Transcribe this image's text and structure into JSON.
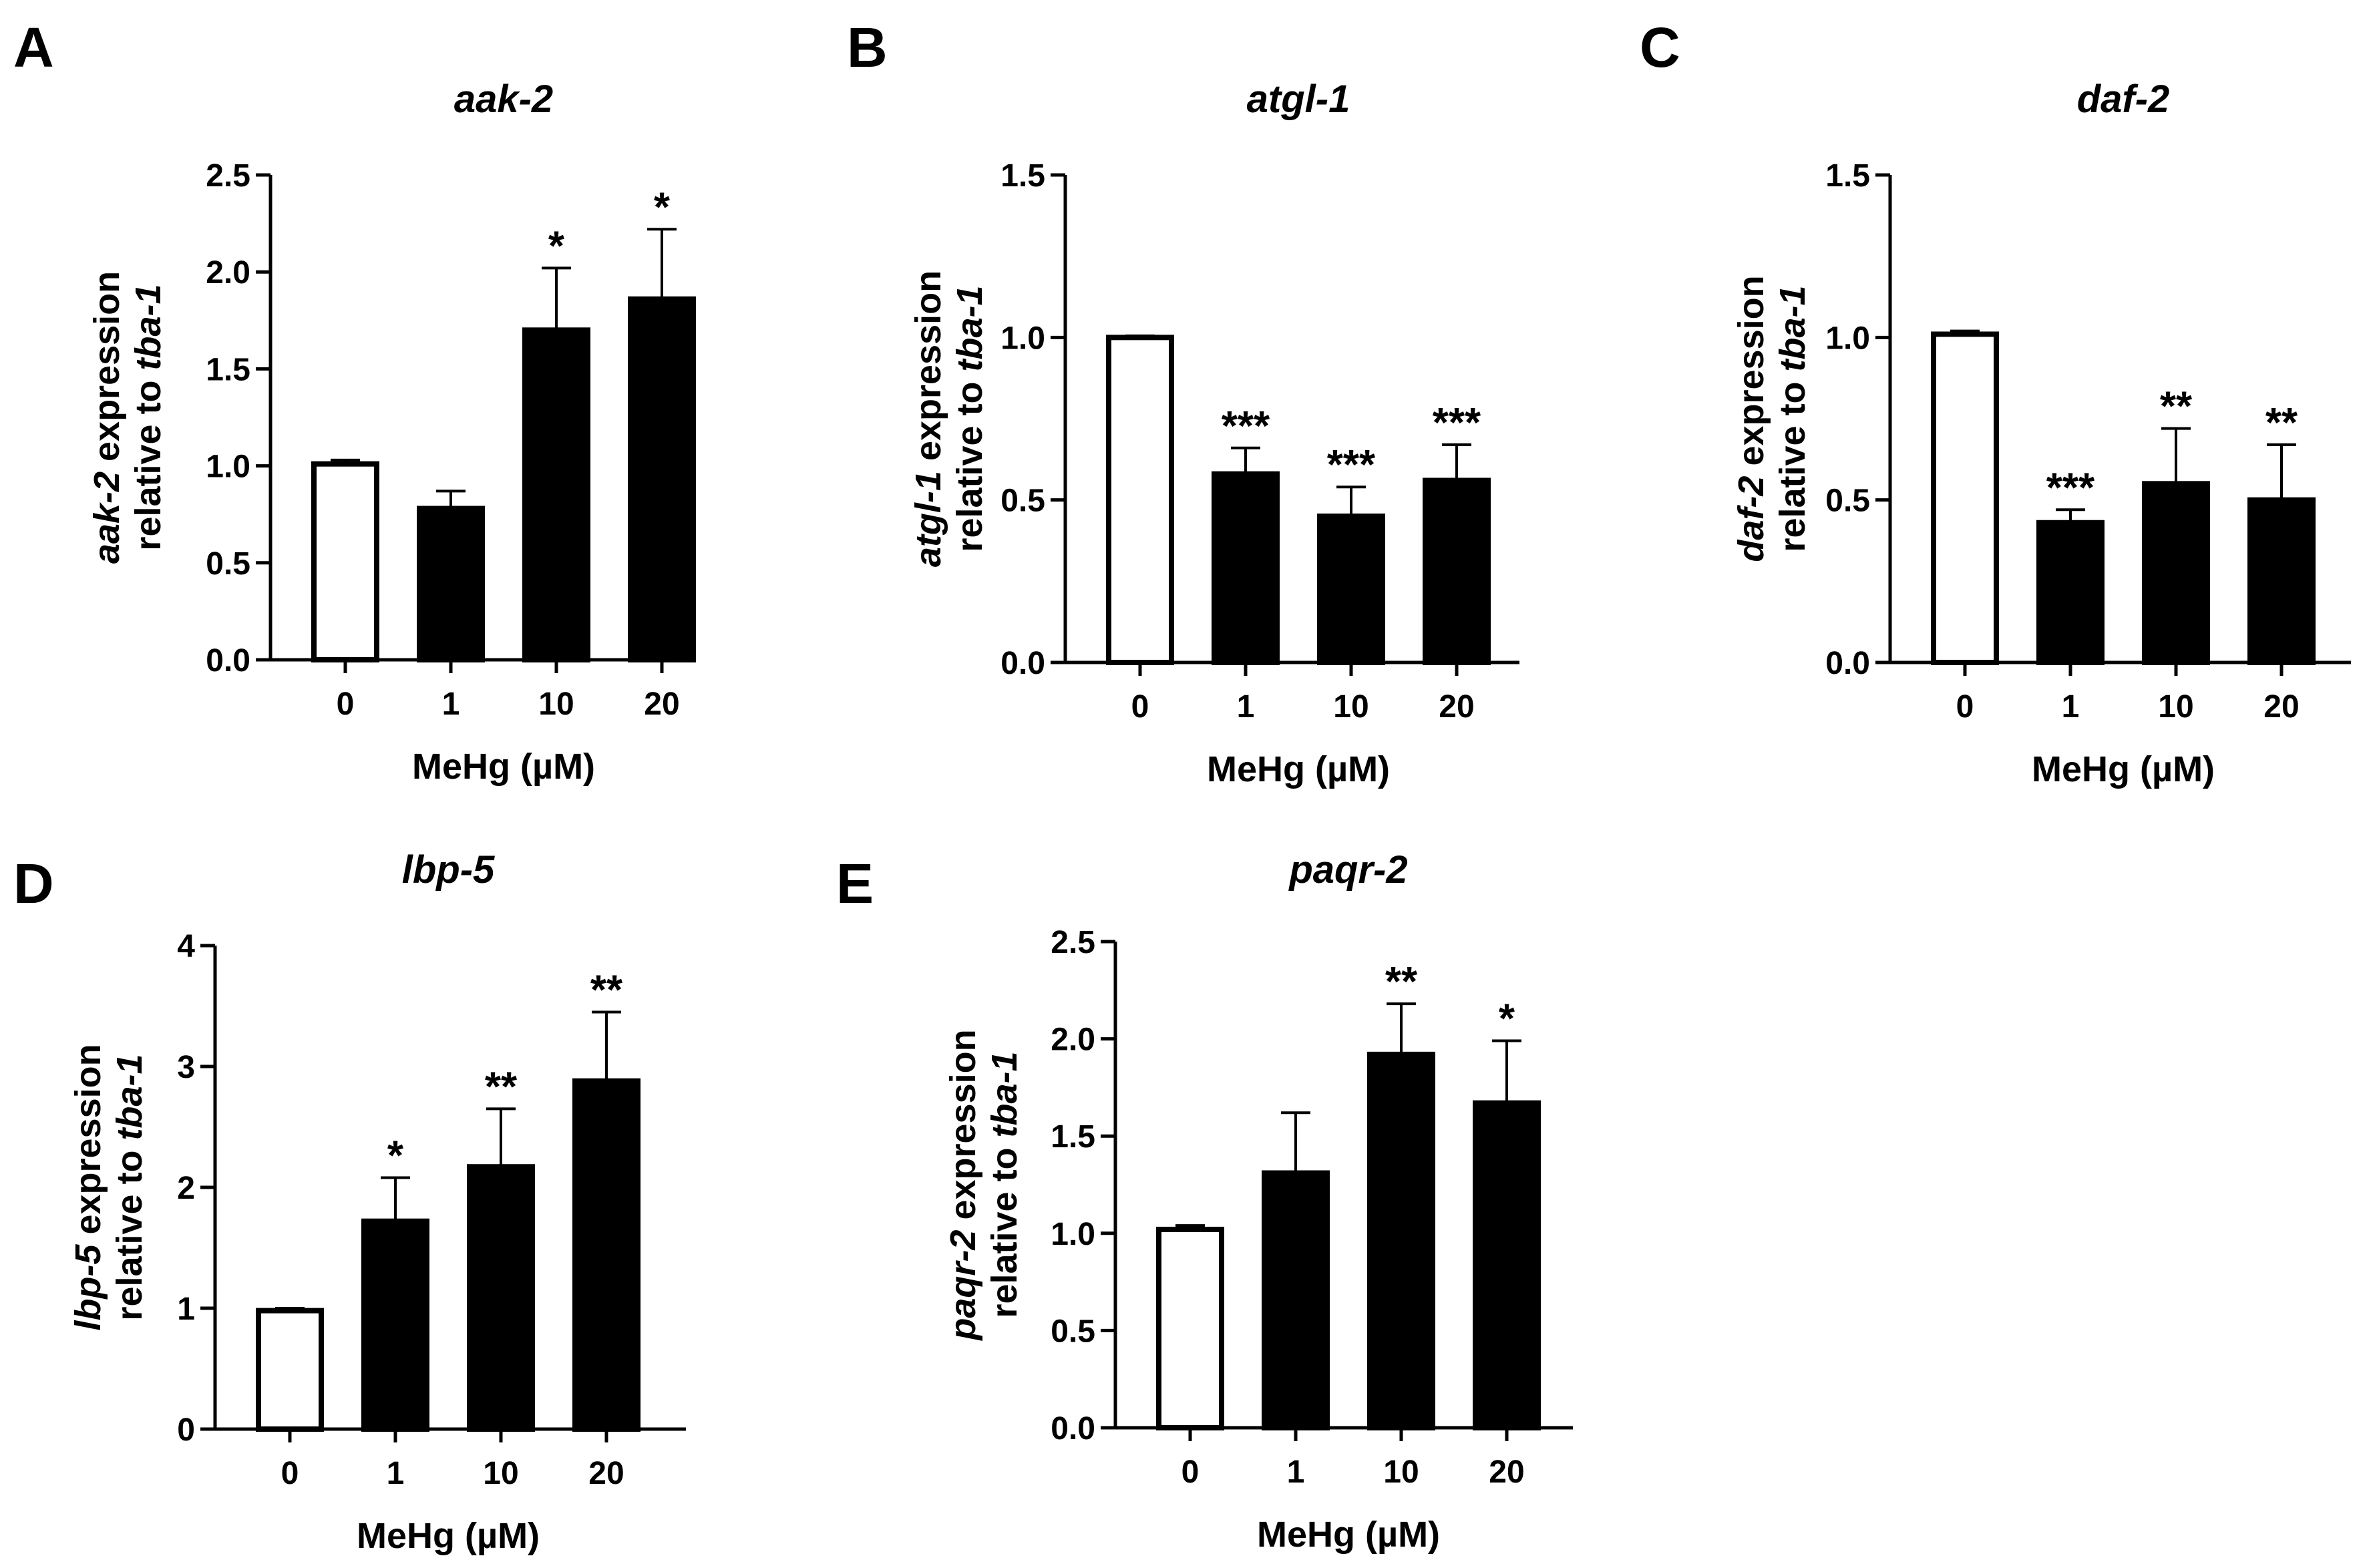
{
  "chart_data": [
    {
      "type": "bar",
      "panel": "A",
      "title": "aak-2",
      "categories": [
        "0",
        "1",
        "10",
        "20"
      ],
      "values": [
        1.01,
        0.78,
        1.7,
        1.86
      ],
      "errors": [
        0.02,
        0.09,
        0.32,
        0.36
      ],
      "significance": [
        "",
        "",
        "*",
        "*"
      ],
      "fills": [
        "#ffffff",
        "#000000",
        "#000000",
        "#000000"
      ],
      "xlabel": "MeHg (µM)",
      "ylabel_line1": {
        "italic": "aak-2",
        "text": " expression"
      },
      "ylabel_line2": {
        "text": "relative to ",
        "italic": "tba-1"
      },
      "ylim": [
        0,
        2.5
      ],
      "yticks": [
        "0.0",
        "0.5",
        "1.0",
        "1.5",
        "2.0",
        "2.5"
      ],
      "grid": false
    },
    {
      "type": "bar",
      "panel": "B",
      "title": "atgl-1",
      "categories": [
        "0",
        "1",
        "10",
        "20"
      ],
      "values": [
        1.0,
        0.58,
        0.45,
        0.56
      ],
      "errors": [
        0.005,
        0.08,
        0.09,
        0.11
      ],
      "significance": [
        "",
        "***",
        "***",
        "***"
      ],
      "fills": [
        "#ffffff",
        "#000000",
        "#000000",
        "#000000"
      ],
      "xlabel": "MeHg (µM)",
      "ylabel_line1": {
        "italic": "atgl-1",
        "text": " expression"
      },
      "ylabel_line2": {
        "text": "relative to ",
        "italic": "tba-1"
      },
      "ylim": [
        0,
        1.5
      ],
      "yticks": [
        "0.0",
        "0.5",
        "1.0",
        "1.5"
      ],
      "grid": false
    },
    {
      "type": "bar",
      "panel": "C",
      "title": "daf-2",
      "categories": [
        "0",
        "1",
        "10",
        "20"
      ],
      "values": [
        1.01,
        0.43,
        0.55,
        0.5
      ],
      "errors": [
        0.01,
        0.04,
        0.17,
        0.17
      ],
      "significance": [
        "",
        "***",
        "**",
        "**"
      ],
      "fills": [
        "#ffffff",
        "#000000",
        "#000000",
        "#000000"
      ],
      "xlabel": "MeHg (µM)",
      "ylabel_line1": {
        "italic": "daf-2",
        "text": " expression"
      },
      "ylabel_line2": {
        "text": "relative to ",
        "italic": "tba-1"
      },
      "ylim": [
        0,
        1.5
      ],
      "yticks": [
        "0.0",
        "0.5",
        "1.0",
        "1.5"
      ],
      "grid": false
    },
    {
      "type": "bar",
      "panel": "D",
      "title": "lbp-5",
      "categories": [
        "0",
        "1",
        "10",
        "20"
      ],
      "values": [
        0.98,
        1.72,
        2.17,
        2.88
      ],
      "errors": [
        0.02,
        0.36,
        0.48,
        0.57
      ],
      "significance": [
        "",
        "*",
        "**",
        "**"
      ],
      "fills": [
        "#ffffff",
        "#000000",
        "#000000",
        "#000000"
      ],
      "xlabel": "MeHg (µM)",
      "ylabel_line1": {
        "italic": "lbp-5",
        "text": " expression"
      },
      "ylabel_line2": {
        "text": "relative to ",
        "italic": "tba-1"
      },
      "ylim": [
        0,
        4
      ],
      "yticks": [
        "0",
        "1",
        "2",
        "3",
        "4"
      ],
      "grid": false
    },
    {
      "type": "bar",
      "panel": "E",
      "title": "paqr-2",
      "categories": [
        "0",
        "1",
        "10",
        "20"
      ],
      "values": [
        1.02,
        1.31,
        1.92,
        1.67
      ],
      "errors": [
        0.02,
        0.31,
        0.26,
        0.32
      ],
      "significance": [
        "",
        "",
        "**",
        "*"
      ],
      "fills": [
        "#ffffff",
        "#000000",
        "#000000",
        "#000000"
      ],
      "xlabel": "MeHg (µM)",
      "ylabel_line1": {
        "italic": "paqr-2",
        "text": " expression"
      },
      "ylabel_line2": {
        "text": "relative to ",
        "italic": "tba-1"
      },
      "ylim": [
        0,
        2.5
      ],
      "yticks": [
        "0.0",
        "0.5",
        "1.0",
        "1.5",
        "2.0",
        "2.5"
      ],
      "grid": false
    }
  ]
}
